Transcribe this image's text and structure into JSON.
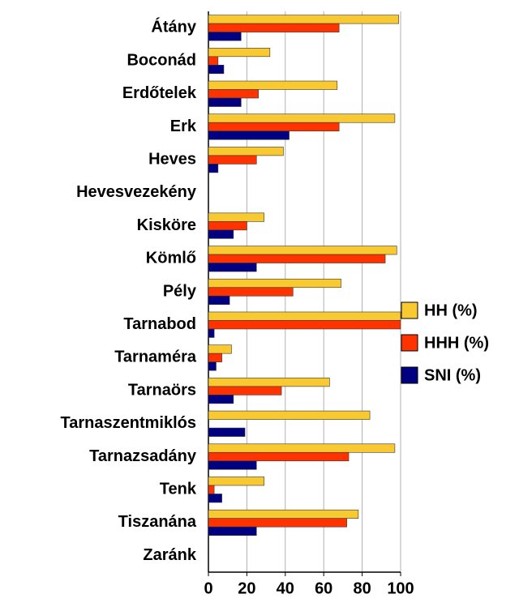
{
  "chart_data": {
    "type": "bar",
    "orientation": "horizontal",
    "categories": [
      "Átány",
      "Boconád",
      "Erdőtelek",
      "Erk",
      "Heves",
      "Hevesvezekény",
      "Kisköre",
      "Kömlő",
      "Pély",
      "Tarnabod",
      "Tarnaméra",
      "Tarnaörs",
      "Tarnaszentmiklós",
      "Tarnazsadány",
      "Tenk",
      "Tiszanána",
      "Zaránk"
    ],
    "series": [
      {
        "name": "HH (%)",
        "color": "#f9c932",
        "values": [
          99,
          32,
          67,
          97,
          39,
          0,
          29,
          98,
          69,
          100,
          12,
          63,
          84,
          97,
          29,
          78,
          0
        ]
      },
      {
        "name": "HHH (%)",
        "color": "#ff3300",
        "values": [
          68,
          5,
          26,
          68,
          25,
          0,
          20,
          92,
          44,
          100,
          7,
          38,
          0,
          73,
          3,
          72,
          0
        ]
      },
      {
        "name": "SNI (%)",
        "color": "#000080",
        "values": [
          17,
          8,
          17,
          42,
          5,
          0,
          13,
          25,
          11,
          3,
          4,
          13,
          19,
          25,
          7,
          25,
          0
        ]
      }
    ],
    "xlim": [
      0,
      100
    ],
    "xticks": [
      0,
      20,
      40,
      60,
      80,
      100
    ],
    "grid": true,
    "legend": "right"
  }
}
